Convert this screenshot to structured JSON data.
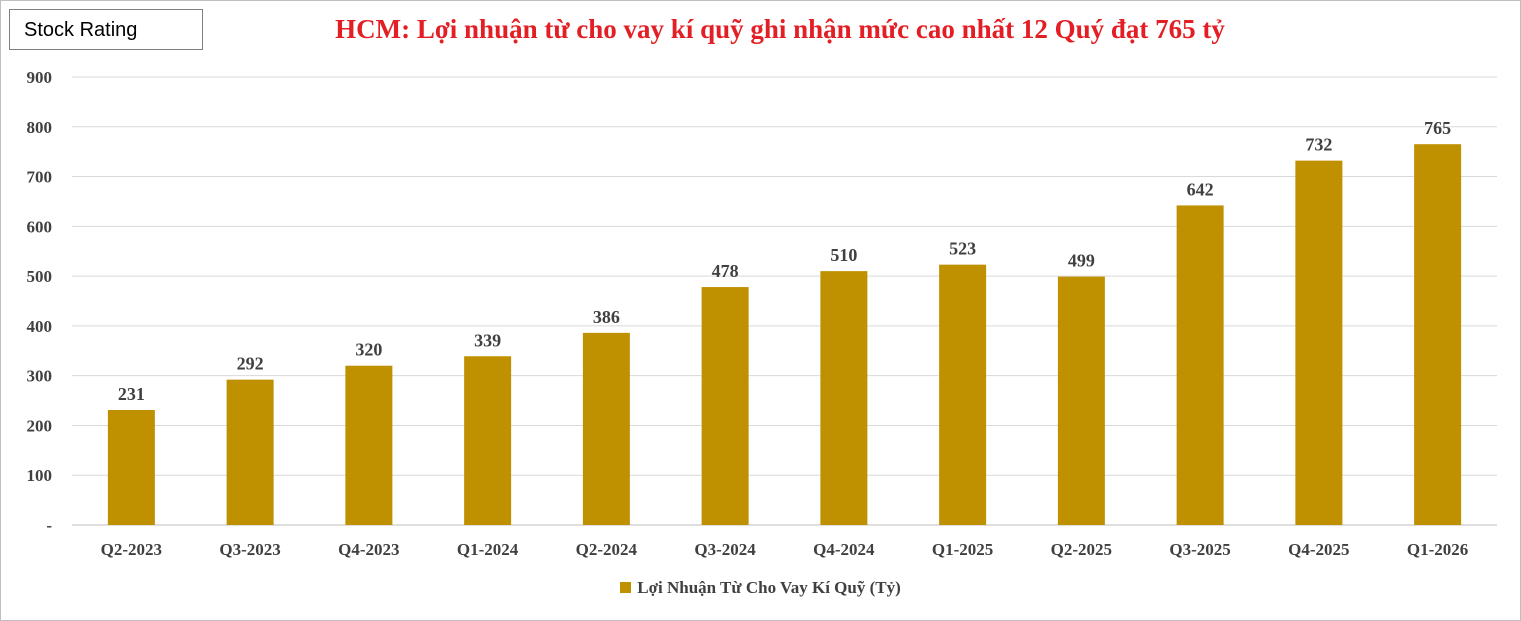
{
  "badge": {
    "text": "Stock Rating"
  },
  "chart_data": {
    "type": "bar",
    "title": "HCM: Lợi nhuận từ cho vay kí quỹ ghi nhận mức cao nhất 12 Quý đạt 765 tỷ",
    "categories": [
      "Q2-2023",
      "Q3-2023",
      "Q4-2023",
      "Q1-2024",
      "Q2-2024",
      "Q3-2024",
      "Q4-2024",
      "Q1-2025",
      "Q2-2025",
      "Q3-2025",
      "Q4-2025",
      "Q1-2026"
    ],
    "series": [
      {
        "name": "Lợi Nhuận Từ Cho Vay Kí Quỹ (Tỷ)",
        "values": [
          231,
          292,
          320,
          339,
          386,
          478,
          510,
          523,
          499,
          642,
          732,
          765
        ],
        "color": "#bf9000"
      }
    ],
    "y_ticks": [
      "-",
      "100",
      "200",
      "300",
      "400",
      "500",
      "600",
      "700",
      "800",
      "900"
    ],
    "ylim": [
      0,
      900
    ],
    "xlabel": "",
    "ylabel": "",
    "grid": true,
    "legend_position": "bottom"
  }
}
